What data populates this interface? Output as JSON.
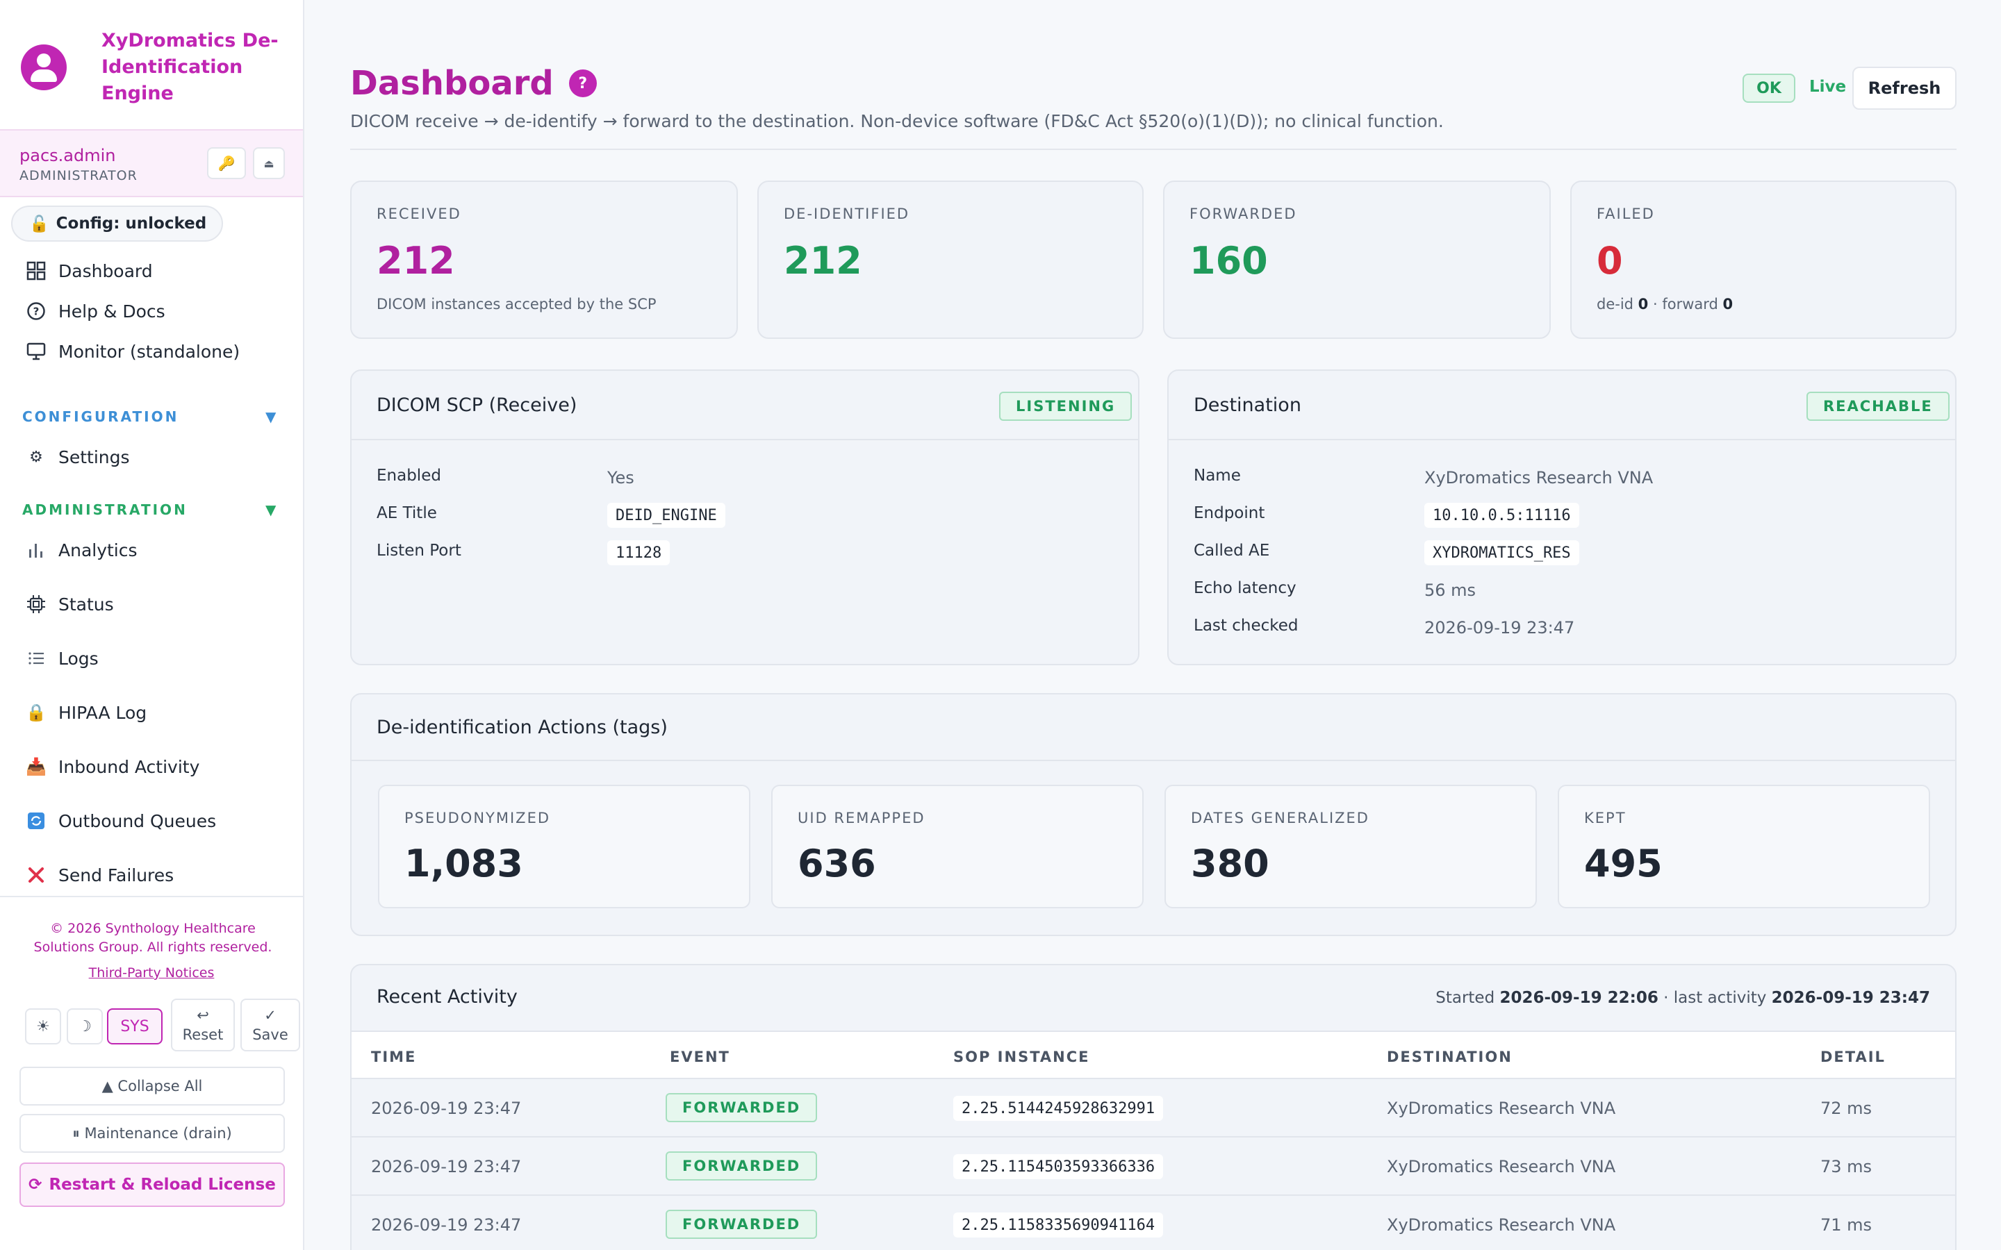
{
  "app": {
    "brand": "XyDromatics De-Identification Engine",
    "accent": "#c026b3"
  },
  "user": {
    "name": "pacs.admin",
    "role": "ADMINISTRATOR",
    "key_icon": "key-icon",
    "eject_icon": "eject-icon"
  },
  "sidebar": {
    "config_pill": "Config: unlocked",
    "top_items": [
      {
        "label": "Dashboard",
        "icon": "grid-icon"
      },
      {
        "label": "Help & Docs",
        "icon": "help-circle-icon"
      },
      {
        "label": "Monitor (standalone)",
        "icon": "monitor-icon"
      }
    ],
    "configuration_section": "CONFIGURATION",
    "configuration_items": [
      {
        "label": "Settings",
        "icon": "gear-icon"
      }
    ],
    "administration_section": "ADMINISTRATION",
    "administration_items": [
      {
        "label": "Analytics",
        "icon": "bar-chart-icon"
      },
      {
        "label": "Status",
        "icon": "chip-icon"
      },
      {
        "label": "Logs",
        "icon": "list-icon"
      },
      {
        "label": "HIPAA Log",
        "icon": "lock-icon"
      },
      {
        "label": "Inbound Activity",
        "icon": "inbox-icon"
      },
      {
        "label": "Outbound Queues",
        "icon": "queue-icon"
      },
      {
        "label": "Send Failures",
        "icon": "x-icon"
      }
    ],
    "footer": {
      "copyright": "© 2026 Synthology Healthcare Solutions Group. All rights reserved.",
      "third_party": "Third-Party Notices",
      "theme_light": "☀",
      "theme_dark": "☽",
      "theme_sys": "SYS",
      "reset_label": "Reset",
      "save_label": "Save",
      "collapse_label": "▲ Collapse All",
      "maintenance_label": "⏸ Maintenance (drain)",
      "restart_label": "Restart & Reload License"
    }
  },
  "header": {
    "title": "Dashboard",
    "help_label": "?",
    "subtitle": "DICOM receive → de-identify → forward to the destination. Non-device software (FD&C Act §520(o)(1)(D)); no clinical function.",
    "status_badge": "OK",
    "live_label": "Live",
    "refresh_label": "Refresh"
  },
  "stats": [
    {
      "label": "RECEIVED",
      "value": "212",
      "sub": "DICOM instances accepted by the SCP",
      "color": "#b0209f"
    },
    {
      "label": "DE-IDENTIFIED",
      "value": "212",
      "sub": "",
      "color": "#1f9a5a"
    },
    {
      "label": "FORWARDED",
      "value": "160",
      "sub": "",
      "color": "#1f9a5a"
    },
    {
      "label": "FAILED",
      "value": "0",
      "color": "#d72b3a",
      "sub_parts": {
        "deid_label": "de-id ",
        "deid_value": "0",
        "sep": " · forward ",
        "forward_value": "0"
      }
    }
  ],
  "scp": {
    "title": "DICOM SCP (Receive)",
    "badge": "LISTENING",
    "rows": [
      {
        "key": "Enabled",
        "value": "Yes"
      },
      {
        "key": "AE Title",
        "value": "DEID_ENGINE"
      },
      {
        "key": "Listen Port",
        "value": "11128"
      }
    ]
  },
  "destination": {
    "title": "Destination",
    "badge": "REACHABLE",
    "rows": [
      {
        "key": "Name",
        "value": "XyDromatics Research VNA"
      },
      {
        "key": "Endpoint",
        "value": "10.10.0.5:11116"
      },
      {
        "key": "Called AE",
        "value": "XYDROMATICS_RES"
      },
      {
        "key": "Echo latency",
        "value": "56 ms"
      },
      {
        "key": "Last checked",
        "value": "2026-09-19 23:47"
      }
    ]
  },
  "actions": {
    "title": "De-identification Actions (tags)",
    "items": [
      {
        "label": "PSEUDONYMIZED",
        "value": "1,083"
      },
      {
        "label": "UID REMAPPED",
        "value": "636"
      },
      {
        "label": "DATES GENERALIZED",
        "value": "380"
      },
      {
        "label": "KEPT",
        "value": "495"
      }
    ]
  },
  "activity": {
    "title": "Recent Activity",
    "started_label": "Started ",
    "started_value": "2026-09-19 22:06",
    "last_label": " · last activity ",
    "last_value": "2026-09-19 23:47",
    "columns": [
      "TIME",
      "EVENT",
      "SOP INSTANCE",
      "DESTINATION",
      "DETAIL"
    ],
    "rows": [
      {
        "time": "2026-09-19 23:47",
        "event": "FORWARDED",
        "sop": "2.25.5144245928632991",
        "destination": "XyDromatics Research VNA",
        "detail": "72 ms"
      },
      {
        "time": "2026-09-19 23:47",
        "event": "FORWARDED",
        "sop": "2.25.1154503593366336",
        "destination": "XyDromatics Research VNA",
        "detail": "73 ms"
      },
      {
        "time": "2026-09-19 23:47",
        "event": "FORWARDED",
        "sop": "2.25.1158335690941164",
        "destination": "XyDromatics Research VNA",
        "detail": "71 ms"
      }
    ]
  }
}
